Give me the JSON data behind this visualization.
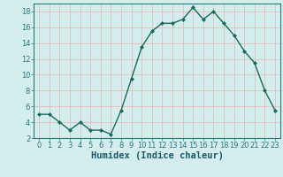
{
  "x": [
    0,
    1,
    2,
    3,
    4,
    5,
    6,
    7,
    8,
    9,
    10,
    11,
    12,
    13,
    14,
    15,
    16,
    17,
    18,
    19,
    20,
    21,
    22,
    23
  ],
  "y": [
    5,
    5,
    4,
    3,
    4,
    3,
    3,
    2.5,
    5.5,
    9.5,
    13.5,
    15.5,
    16.5,
    16.5,
    17,
    18.5,
    17,
    18,
    16.5,
    15,
    13,
    11.5,
    8,
    5.5
  ],
  "line_color": "#1a6b5a",
  "marker": "D",
  "marker_size": 2,
  "linewidth": 1.0,
  "bg_color": "#d4eeee",
  "grid_color": "#e8b4b4",
  "xlabel": "Humidex (Indice chaleur)",
  "ylim": [
    2,
    19
  ],
  "xlim": [
    -0.5,
    23.5
  ],
  "yticks": [
    2,
    4,
    6,
    8,
    10,
    12,
    14,
    16,
    18
  ],
  "xticks": [
    0,
    1,
    2,
    3,
    4,
    5,
    6,
    7,
    8,
    9,
    10,
    11,
    12,
    13,
    14,
    15,
    16,
    17,
    18,
    19,
    20,
    21,
    22,
    23
  ],
  "tick_fontsize": 6,
  "xlabel_fontsize": 7.5
}
